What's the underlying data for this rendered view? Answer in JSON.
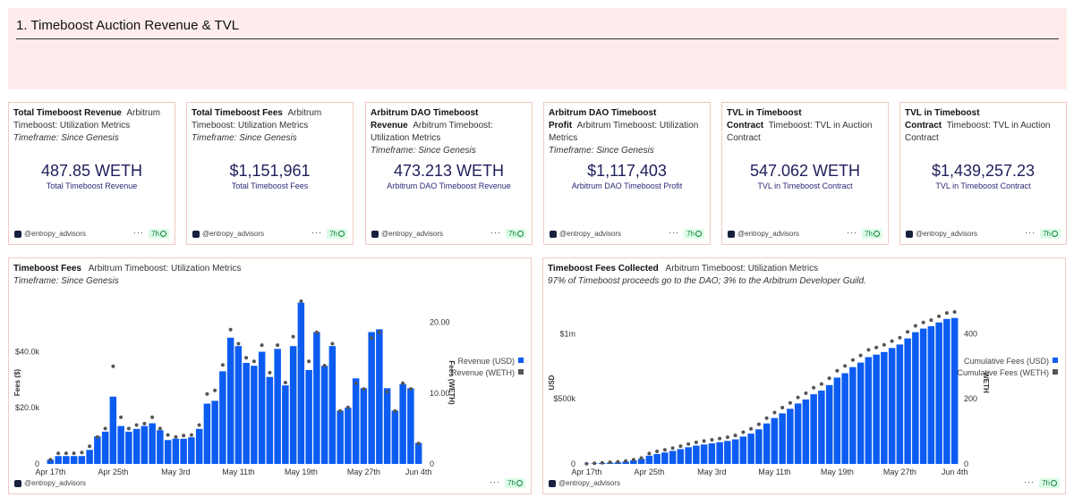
{
  "section": {
    "title": "1. Timeboost Auction Revenue & TVL"
  },
  "colors": {
    "bar": "#0c5cf2",
    "dot": "#555555",
    "accent": "#1f1f5c",
    "badge_bg": "#dcfce7",
    "badge_fg": "#15803d"
  },
  "footer": {
    "author": "@entropy_advisors",
    "dots": "···",
    "age": "7h"
  },
  "kpis": [
    {
      "title": "Total Timeboost Revenue",
      "sub": "Arbitrum Timeboost: Utilization Metrics",
      "timeframe": "Timeframe: Since Genesis",
      "value": "487.85 WETH",
      "label": "Total Timeboost Revenue"
    },
    {
      "title": "Total Timeboost Fees",
      "sub": "Arbitrum Timeboost: Utilization Metrics",
      "timeframe": "Timeframe: Since Genesis",
      "value": "$1,151,961",
      "label": "Total Timeboost Fees"
    },
    {
      "title": "Arbitrum DAO Timeboost Revenue",
      "sub": "Arbitrum Timeboost: Utilization Metrics",
      "timeframe": "Timeframe: Since Genesis",
      "value": "473.213 WETH",
      "label": "Arbitrum DAO Timeboost Revenue"
    },
    {
      "title": "Arbitrum DAO Timeboost Profit",
      "sub": "Arbitrum Timeboost: Utilization Metrics",
      "timeframe": "Timeframe: Since Genesis",
      "value": "$1,117,403",
      "label": "Arbitrum DAO Timeboost Profit"
    },
    {
      "title": "TVL in Timeboost Contract",
      "sub": "Timeboost: TVL in Auction Contract",
      "timeframe": "",
      "value": "547.062 WETH",
      "label": "TVL in Timeboost Contract"
    },
    {
      "title": "TVL in Timeboost Contract",
      "sub": "Timeboost: TVL in Auction Contract",
      "timeframe": "",
      "value": "$1,439,257.23",
      "label": "TVL in Timeboost Contract"
    }
  ],
  "charts": {
    "fees": {
      "title": "Timeboost Fees",
      "sub": "Arbitrum Timeboost: Utilization Metrics",
      "note": "Timeframe: Since Genesis"
    },
    "collected": {
      "title": "Timeboost Fees Collected",
      "sub": "Arbitrum Timeboost: Utilization Metrics",
      "note": "97% of Timeboost proceeds go to the DAO; 3% to the Arbitrum Developer Guild."
    }
  },
  "chart_data": [
    {
      "type": "bar",
      "x_ticks": [
        "Apr 17th",
        "Apr 25th",
        "May 3rd",
        "May 11th",
        "May 19th",
        "May 27th",
        "Jun 4th"
      ],
      "ylabel": "Fees ($)",
      "y2label": "Fees (WETH)",
      "y_ticks": [
        "0",
        "$20.0k",
        "$40.0k"
      ],
      "y2_ticks": [
        "0",
        "10.00",
        "20.00"
      ],
      "ylim": [
        0,
        58000
      ],
      "y2lim": [
        0,
        23
      ],
      "legend": "right",
      "series": [
        {
          "name": "Revenue (USD)",
          "kind": "bar",
          "values": [
            1500,
            2800,
            2800,
            2800,
            2800,
            5000,
            9800,
            11500,
            24000,
            13500,
            11500,
            12500,
            13500,
            14500,
            12000,
            8500,
            9000,
            9000,
            9500,
            12500,
            21500,
            22500,
            33000,
            45000,
            42000,
            36000,
            35000,
            40000,
            31000,
            41000,
            28000,
            42000,
            57500,
            33500,
            47000,
            35000,
            42000,
            19000,
            20000,
            30500,
            27000,
            47000,
            48000,
            27000,
            19000,
            28500,
            27000,
            7500
          ]
        },
        {
          "name": "Revenue (WETH)",
          "kind": "dot",
          "values": [
            0.6,
            1.5,
            1.5,
            1.5,
            1.6,
            2.5,
            3.8,
            5.0,
            13.8,
            6.6,
            5.0,
            5.5,
            5.7,
            6.6,
            5.0,
            4.1,
            3.8,
            4.0,
            4.1,
            5.5,
            9.9,
            10.4,
            14.0,
            19.0,
            17.0,
            15.0,
            14.5,
            16.8,
            12.9,
            16.8,
            11.5,
            18.0,
            23.0,
            14.5,
            18.6,
            13.9,
            17.0,
            7.5,
            8.0,
            11.4,
            10.6,
            17.8,
            18.6,
            10.2,
            7.5,
            11.4,
            10.6,
            2.9
          ]
        }
      ]
    },
    {
      "type": "bar",
      "x_ticks": [
        "Apr 17th",
        "Apr 25th",
        "May 3rd",
        "May 11th",
        "May 19th",
        "May 27th",
        "Jun 4th"
      ],
      "ylabel": "USD",
      "y2label": "WETH",
      "y_ticks": [
        "0",
        "$500k",
        "$1m"
      ],
      "y2_ticks": [
        "0",
        "200",
        "400"
      ],
      "ylim": [
        0,
        1250000
      ],
      "y2lim": [
        0,
        500
      ],
      "legend": "right",
      "series": [
        {
          "name": "Cumulative Fees (USD)",
          "kind": "bar",
          "values": [
            1500,
            4300,
            7100,
            9900,
            12700,
            17700,
            27500,
            39000,
            63000,
            76500,
            88000,
            100500,
            114000,
            128500,
            140500,
            149000,
            158000,
            167000,
            176500,
            189000,
            210500,
            233000,
            266000,
            311000,
            353000,
            389000,
            424000,
            464000,
            495000,
            536000,
            564000,
            606000,
            663500,
            697000,
            744000,
            779000,
            821000,
            840000,
            860000,
            890500,
            917500,
            964500,
            1012500,
            1039500,
            1058500,
            1087000,
            1114000,
            1121500
          ]
        },
        {
          "name": "Cumulative Fees (WETH)",
          "kind": "dot",
          "values": [
            0.6,
            2.1,
            3.6,
            5.1,
            6.7,
            9.2,
            13,
            18,
            31.8,
            38.4,
            43.4,
            48.9,
            54.6,
            61.2,
            66.2,
            70.3,
            74.1,
            78.1,
            82.2,
            87.7,
            97.6,
            108,
            122,
            141,
            158,
            173,
            187.5,
            204.3,
            217.2,
            234,
            245.5,
            263.5,
            286.5,
            301,
            319.6,
            333.5,
            350.5,
            358,
            366,
            377.4,
            388,
            405.8,
            424.4,
            434.6,
            442.1,
            453.5,
            464.1,
            467
          ]
        }
      ]
    }
  ]
}
